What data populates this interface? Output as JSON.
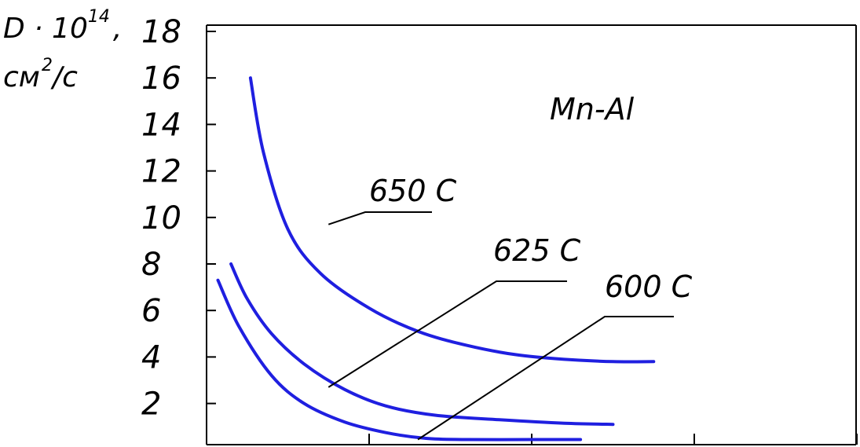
{
  "chart_data": {
    "type": "line",
    "title": "",
    "annotation": "Mn-Al",
    "ylabel": {
      "line1_prefix": "D · 10",
      "line1_exp": "14",
      "line1_suffix": ",",
      "line2_prefix": "см",
      "line2_exp": "2",
      "line2_suffix": "/с"
    },
    "xlabel": "",
    "ylim": [
      0,
      18
    ],
    "y_ticks": [
      "2",
      "4",
      "6",
      "8",
      "10",
      "12",
      "14",
      "16",
      "18"
    ],
    "x_tick_count": 4,
    "grid": false,
    "colors": {
      "curve": "#1f1fe0",
      "axis": "#000000"
    },
    "series": [
      {
        "name": "650 C",
        "points": [
          [
            0.27,
            16.0
          ],
          [
            0.35,
            12.8
          ],
          [
            0.5,
            9.5
          ],
          [
            0.7,
            7.6
          ],
          [
            1.0,
            6.1
          ],
          [
            1.3,
            5.1
          ],
          [
            1.6,
            4.5
          ],
          [
            1.9,
            4.1
          ],
          [
            2.2,
            3.9
          ],
          [
            2.5,
            3.8
          ],
          [
            2.75,
            3.8
          ]
        ]
      },
      {
        "name": "625 C",
        "points": [
          [
            0.15,
            8.0
          ],
          [
            0.25,
            6.5
          ],
          [
            0.4,
            5.0
          ],
          [
            0.6,
            3.7
          ],
          [
            0.85,
            2.6
          ],
          [
            1.1,
            1.9
          ],
          [
            1.4,
            1.5
          ],
          [
            1.8,
            1.3
          ],
          [
            2.2,
            1.15
          ],
          [
            2.5,
            1.1
          ]
        ]
      },
      {
        "name": "600 C",
        "points": [
          [
            0.07,
            7.3
          ],
          [
            0.2,
            5.3
          ],
          [
            0.4,
            3.2
          ],
          [
            0.6,
            2.0
          ],
          [
            0.85,
            1.2
          ],
          [
            1.1,
            0.75
          ],
          [
            1.35,
            0.5
          ],
          [
            1.6,
            0.45
          ],
          [
            2.0,
            0.45
          ],
          [
            2.3,
            0.45
          ]
        ]
      }
    ],
    "series_label_anchors": [
      {
        "name": "650 C",
        "x": 0.75,
        "y": 9.7
      },
      {
        "name": "625 C",
        "x": 0.75,
        "y": 2.7
      },
      {
        "name": "600 C",
        "x": 1.3,
        "y": 0.45
      }
    ]
  }
}
